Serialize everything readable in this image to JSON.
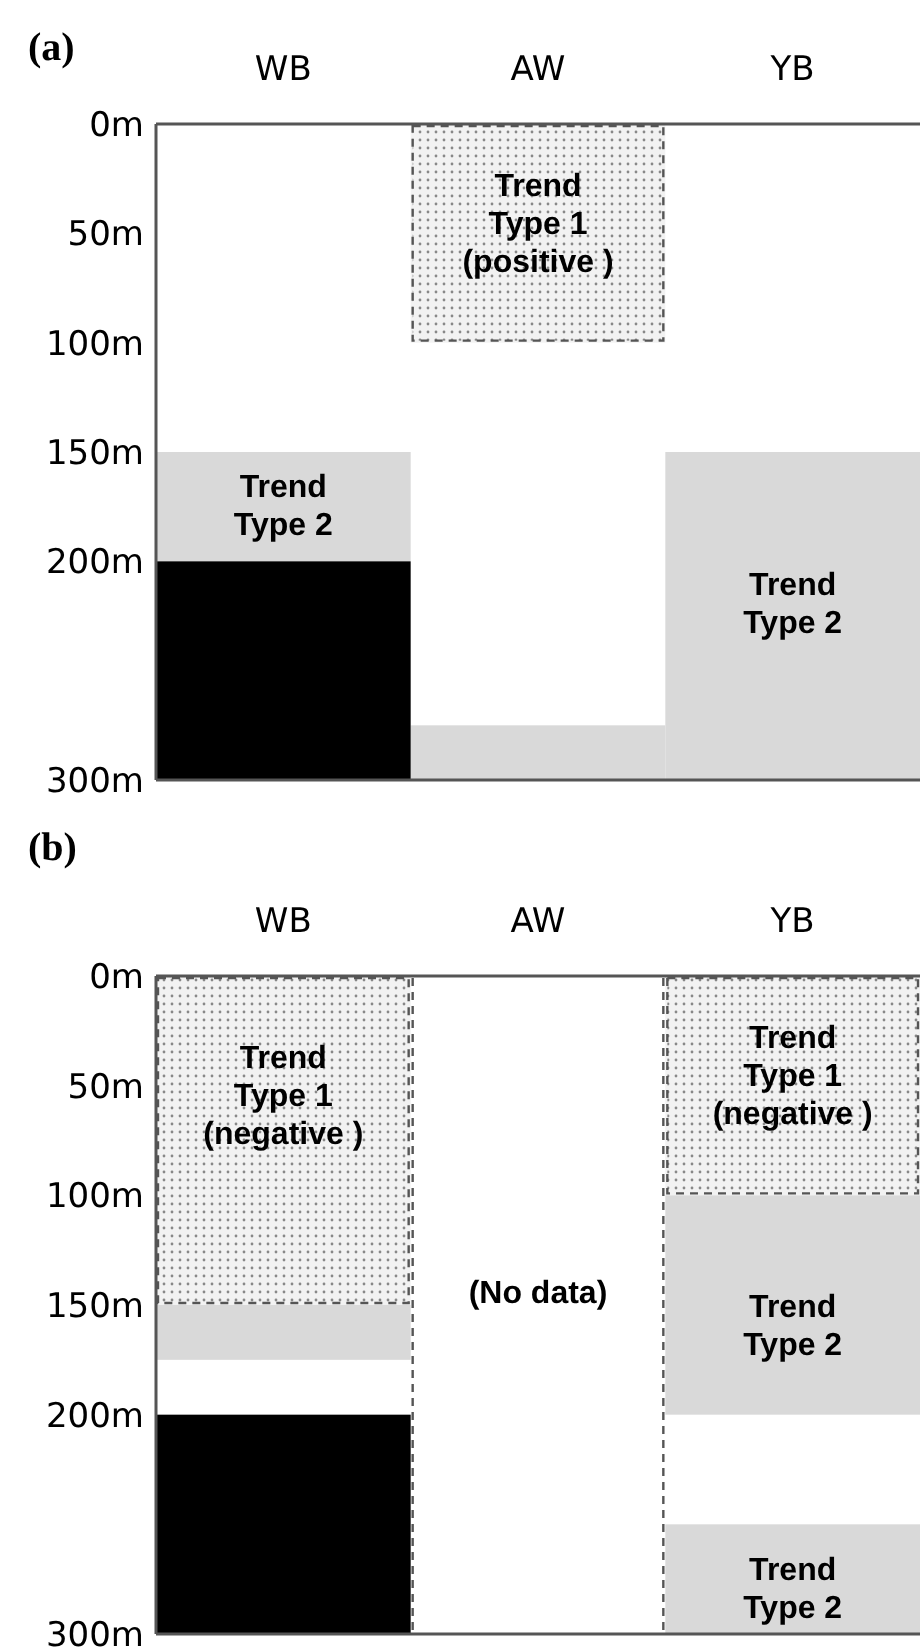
{
  "chart_data": [
    {
      "type": "bar",
      "title": "(a)",
      "categories": [
        "WB",
        "AW",
        "YB"
      ],
      "ylim": [
        300,
        0
      ],
      "yticks": [
        {
          "value": 0,
          "label": "0m"
        },
        {
          "value": 50,
          "label": "50m"
        },
        {
          "value": 100,
          "label": "100m"
        },
        {
          "value": 150,
          "label": "150m"
        },
        {
          "value": 200,
          "label": "200m"
        },
        {
          "value": 300,
          "label": "300m"
        }
      ],
      "series": [
        {
          "color": "#f2f2f2",
          "line_style": "dashed",
          "values": [
            null,
            100,
            null
          ],
          "base": [
            null,
            0,
            null
          ]
        },
        {
          "color": "#d9d9d9",
          "values": [
            50,
            25,
            150
          ],
          "base": [
            150,
            275,
            150
          ]
        },
        {
          "color": "#000000",
          "values": [
            100,
            null,
            null
          ],
          "base": [
            200,
            null,
            null
          ]
        }
      ],
      "annotations": [
        "Trend\nType 1\n(positive )",
        "Trend\nType 2",
        "Trend\nType 2"
      ]
    },
    {
      "type": "bar",
      "title": "(b)",
      "categories": [
        "WB",
        "AW",
        "YB"
      ],
      "ylim": [
        300,
        0
      ],
      "yticks": [
        {
          "value": 0,
          "label": "0m"
        },
        {
          "value": 50,
          "label": "50m"
        },
        {
          "value": 100,
          "label": "100m"
        },
        {
          "value": 150,
          "label": "150m"
        },
        {
          "value": 200,
          "label": "200m"
        },
        {
          "value": 300,
          "label": "300m"
        }
      ],
      "series": [
        {
          "color": "#f2f2f2",
          "line_style": "dashed",
          "values": [
            150,
            null,
            100
          ],
          "base": [
            0,
            null,
            0
          ]
        },
        {
          "color": "#d9d9d9",
          "values": [
            25,
            null,
            100
          ],
          "base": [
            150,
            null,
            100
          ]
        },
        {
          "color": "#d9d9d9",
          "values": [
            null,
            null,
            50
          ],
          "base": [
            null,
            null,
            250
          ]
        },
        {
          "color": "#000000",
          "values": [
            100,
            null,
            null
          ],
          "base": [
            200,
            null,
            null
          ]
        }
      ],
      "annotations": [
        "Trend\nType 1\n(negative )",
        "(No data)",
        "Trend\nType 1\n(negative )",
        "Trend\nType 2",
        "Trend\nType 2"
      ]
    }
  ]
}
